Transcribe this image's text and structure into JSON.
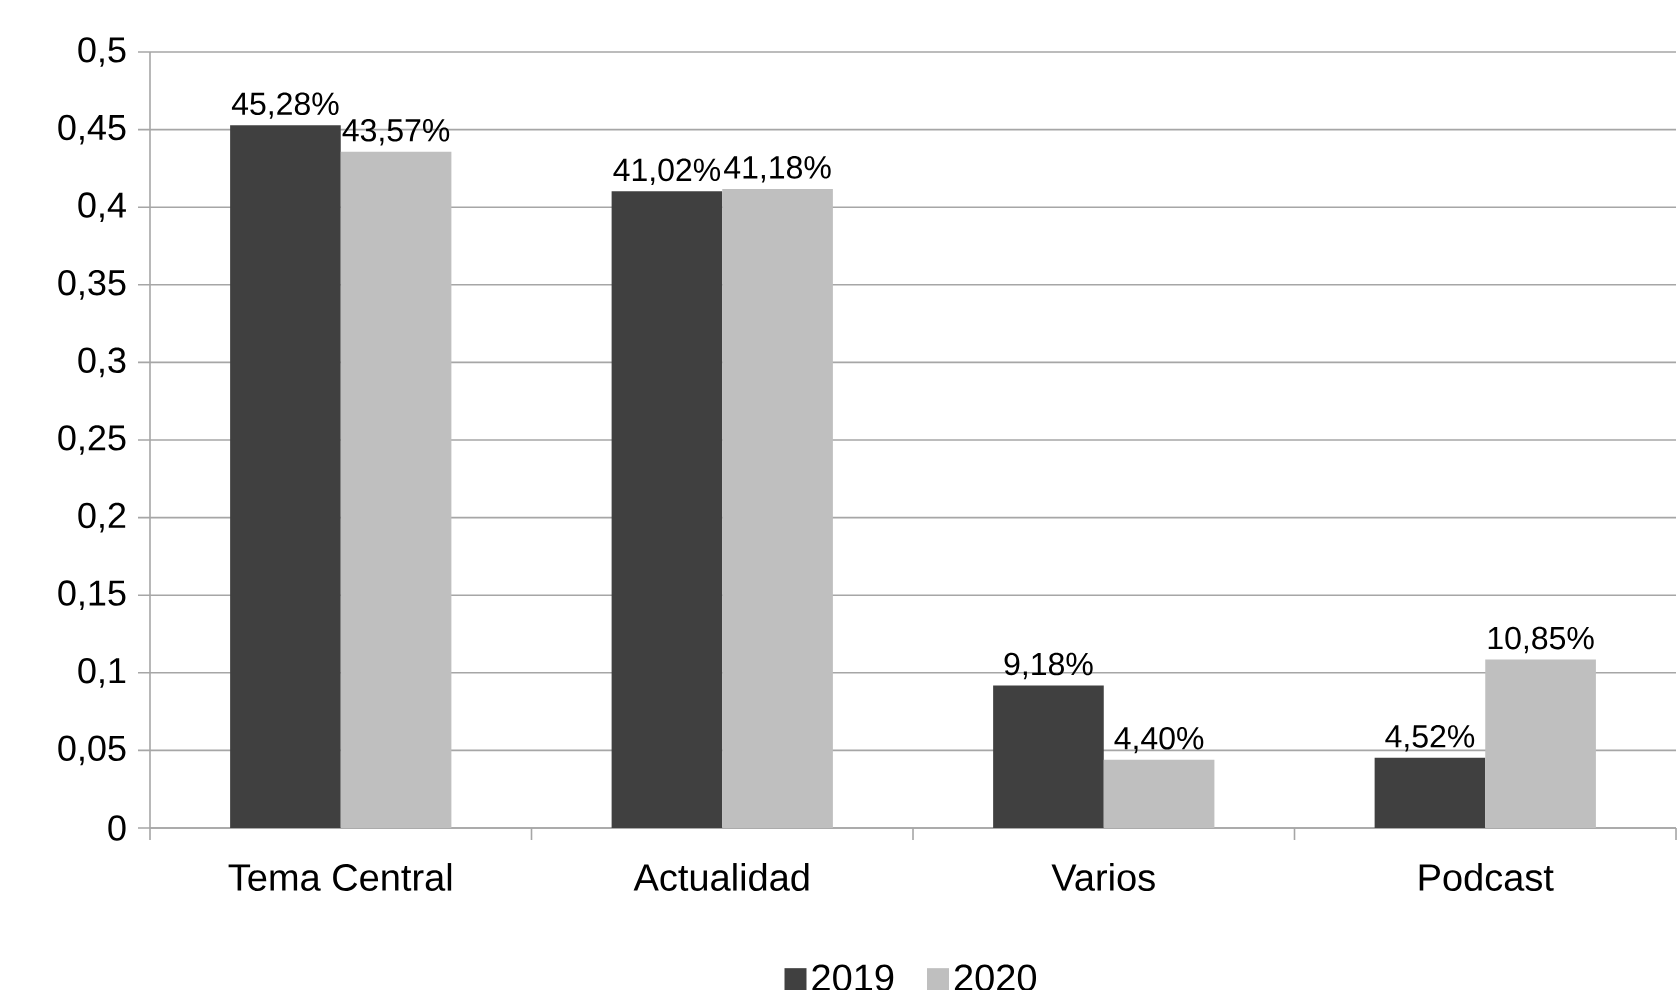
{
  "chart_data": {
    "type": "bar",
    "categories": [
      "Tema Central",
      "Actualidad",
      "Varios",
      "Podcast"
    ],
    "series": [
      {
        "name": "2019",
        "color": "#404040",
        "values": [
          0.4528,
          0.4102,
          0.0918,
          0.0452
        ],
        "value_labels": [
          "45,28%",
          "41,02%",
          "9,18%",
          "4,52%"
        ]
      },
      {
        "name": "2020",
        "color": "#bfbfbf",
        "values": [
          0.4357,
          0.4118,
          0.044,
          0.1085
        ],
        "value_labels": [
          "43,57%",
          "41,18%",
          "4,40%",
          "10,85%"
        ]
      }
    ],
    "ylim": [
      0,
      0.5
    ],
    "yticks": [
      0,
      {
        "value": 0.05,
        "label": "0,05"
      },
      {
        "value": 0.1,
        "label": "0,1"
      },
      {
        "value": 0.15,
        "label": "0,15"
      },
      {
        "value": 0.2,
        "label": "0,2"
      },
      {
        "value": 0.25,
        "label": "0,25"
      },
      {
        "value": 0.3,
        "label": "0,3"
      },
      {
        "value": 0.35,
        "label": "0,35"
      },
      {
        "value": 0.4,
        "label": "0,4"
      },
      {
        "value": 0.45,
        "label": "0,45"
      },
      {
        "value": 0.5,
        "label": "0,5"
      }
    ],
    "grid": "y",
    "legend": "bottom"
  }
}
